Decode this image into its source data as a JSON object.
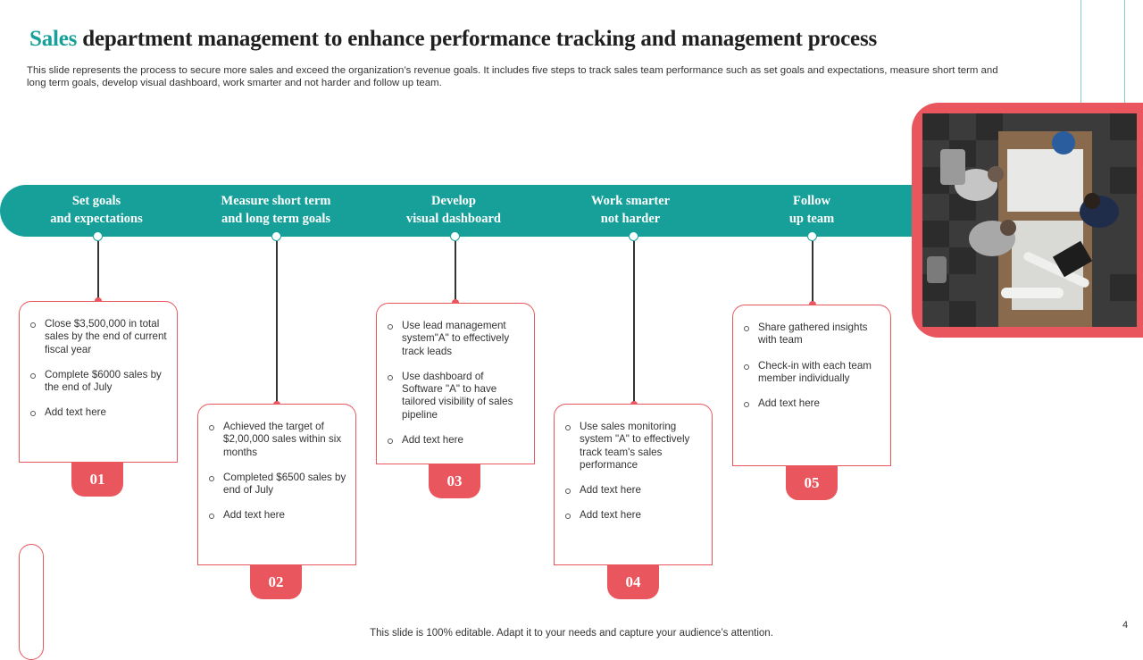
{
  "title": {
    "accent": "Sales",
    "rest": " department management to enhance performance tracking and management process"
  },
  "subtitle": "This slide represents the process to secure more sales and exceed the organization’s revenue goals. It includes five steps to track sales team performance such as set goals and expectations, measure short term and long term goals, develop visual dashboard, work smarter and not harder and follow up team.",
  "steps": [
    {
      "label": "Set goals\nand  expectations",
      "number": "01",
      "bullets": [
        "Close $3,500,000 in total sales by the end of current fiscal year",
        "Complete $6000 sales by the end of July",
        "Add text here"
      ]
    },
    {
      "label": "Measure short term\nand long term goals",
      "number": "02",
      "bullets": [
        "Achieved the target of $2,00,000 sales within six months",
        "Completed $6500 sales by end of July",
        "Add text here"
      ]
    },
    {
      "label": "Develop\nvisual dashboard",
      "number": "03",
      "bullets": [
        "Use lead management system\"A\" to effectively track leads",
        "Use dashboard of Software \"A\" to have tailored visibility of sales pipeline",
        "Add text here"
      ]
    },
    {
      "label": "Work  smarter\nnot harder",
      "number": "04",
      "bullets": [
        "Use sales monitoring system \"A\" to effectively track team's sales performance",
        "Add text here",
        "Add text here"
      ]
    },
    {
      "label": "Follow\nup  team",
      "number": "05",
      "bullets": [
        "Share gathered insights with team",
        "Check-in with each team member individually",
        "Add text here"
      ]
    }
  ],
  "footer": "This slide is 100% editable. Adapt it to your needs and capture your audience’s attention.",
  "page_number": "4",
  "colors": {
    "teal": "#17a09a",
    "coral": "#e9565e"
  }
}
